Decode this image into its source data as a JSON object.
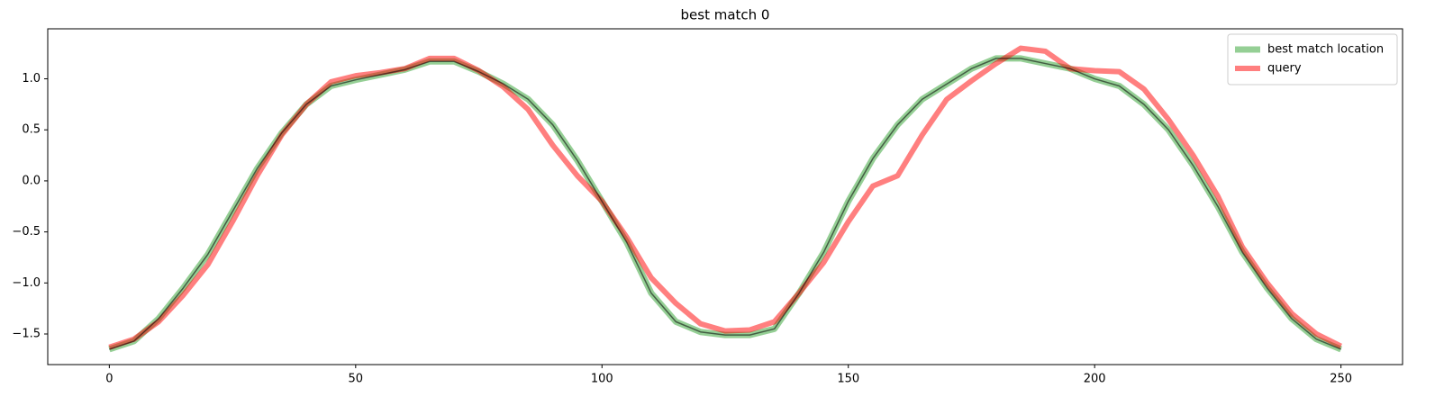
{
  "chart_data": {
    "type": "line",
    "title": "best match 0",
    "x": [
      0,
      5,
      10,
      15,
      20,
      25,
      30,
      35,
      40,
      45,
      50,
      55,
      60,
      65,
      70,
      75,
      80,
      85,
      90,
      95,
      100,
      105,
      110,
      115,
      120,
      125,
      130,
      135,
      140,
      145,
      150,
      155,
      160,
      165,
      170,
      175,
      180,
      185,
      190,
      195,
      200,
      205,
      210,
      215,
      220,
      225,
      230,
      235,
      240,
      245,
      250
    ],
    "series": [
      {
        "name": "best match location",
        "color": "#2ca02c",
        "width": 7,
        "values": [
          -1.65,
          -1.57,
          -1.35,
          -1.05,
          -0.72,
          -0.3,
          0.12,
          0.47,
          0.75,
          0.93,
          0.99,
          1.04,
          1.09,
          1.17,
          1.17,
          1.07,
          0.95,
          0.8,
          0.55,
          0.2,
          -0.2,
          -0.6,
          -1.1,
          -1.38,
          -1.48,
          -1.51,
          -1.51,
          -1.45,
          -1.1,
          -0.7,
          -0.2,
          0.22,
          0.55,
          0.8,
          0.95,
          1.1,
          1.2,
          1.2,
          1.15,
          1.1,
          1.0,
          0.93,
          0.75,
          0.5,
          0.15,
          -0.25,
          -0.7,
          -1.05,
          -1.35,
          -1.55,
          -1.65
        ]
      },
      {
        "name": "query",
        "color": "#ff0000",
        "width": 6,
        "values": [
          -1.63,
          -1.55,
          -1.38,
          -1.12,
          -0.82,
          -0.4,
          0.05,
          0.45,
          0.75,
          0.97,
          1.03,
          1.06,
          1.1,
          1.2,
          1.2,
          1.08,
          0.92,
          0.7,
          0.35,
          0.05,
          -0.2,
          -0.55,
          -0.95,
          -1.2,
          -1.4,
          -1.47,
          -1.46,
          -1.38,
          -1.1,
          -0.8,
          -0.4,
          -0.05,
          0.05,
          0.45,
          0.8,
          0.98,
          1.15,
          1.3,
          1.27,
          1.1,
          1.08,
          1.07,
          0.9,
          0.6,
          0.25,
          -0.15,
          -0.65,
          -1.0,
          -1.3,
          -1.5,
          -1.62
        ]
      },
      {
        "color": "#000000",
        "width": 1.5,
        "values": [
          -1.65,
          -1.57,
          -1.35,
          -1.05,
          -0.72,
          -0.3,
          0.12,
          0.47,
          0.75,
          0.93,
          0.99,
          1.04,
          1.09,
          1.17,
          1.17,
          1.07,
          0.95,
          0.8,
          0.55,
          0.2,
          -0.2,
          -0.6,
          -1.1,
          -1.38,
          -1.48,
          -1.51,
          -1.51,
          -1.45,
          -1.1,
          -0.7,
          -0.2,
          0.22,
          0.55,
          0.8,
          0.95,
          1.1,
          1.2,
          1.2,
          1.15,
          1.1,
          1.0,
          0.93,
          0.75,
          0.5,
          0.15,
          -0.25,
          -0.7,
          -1.05,
          -1.35,
          -1.55,
          -1.65
        ]
      }
    ],
    "xlim": [
      -12.5,
      262.5
    ],
    "ylim": [
      -1.8,
      1.49
    ],
    "xticks": [
      0,
      50,
      100,
      150,
      200,
      250
    ],
    "yticks": [
      {
        "value": -1.5,
        "label": "−1.5"
      },
      {
        "value": -1.0,
        "label": "−1.0"
      },
      {
        "value": -0.5,
        "label": "−0.5"
      },
      {
        "value": 0,
        "label": "0.0"
      },
      {
        "value": 0.5,
        "label": "0.5"
      },
      {
        "value": 1.0,
        "label": "1.0"
      }
    ],
    "legend": "upper right",
    "grid": false
  }
}
